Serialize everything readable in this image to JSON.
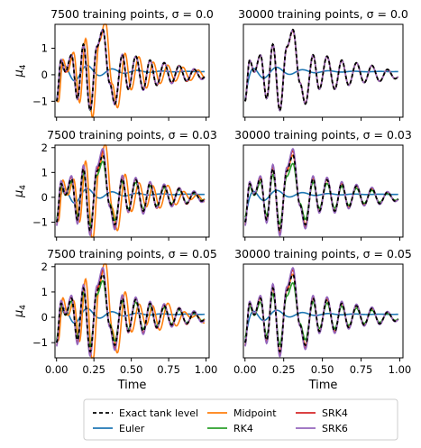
{
  "colors": {
    "Exact tank level": "#000000",
    "Euler": "#1f77b4",
    "Midpoint": "#ff7f0e",
    "RK4": "#2ca02c",
    "SRK4": "#d62728",
    "SRK6": "#9467bd"
  },
  "legend": {
    "columns": [
      [
        "Exact tank level",
        "Euler"
      ],
      [
        "Midpoint",
        "RK4"
      ],
      [
        "SRK4",
        "SRK6"
      ]
    ],
    "position": "bottom"
  },
  "chart_data": [
    {
      "type": "line",
      "title": "7500 training points, σ = 0.0",
      "ylabel": "μ4",
      "xlabel": "",
      "ylim": [
        -1.6,
        1.9
      ],
      "yticks": [
        -1,
        0,
        1
      ],
      "xticks": [],
      "grid": false,
      "series": [
        {
          "name": "Exact tank level",
          "style": "dashed"
        },
        {
          "name": "Euler"
        },
        {
          "name": "Midpoint"
        },
        {
          "name": "RK4"
        },
        {
          "name": "SRK4"
        },
        {
          "name": "SRK6"
        }
      ],
      "x": [
        0,
        1
      ]
    },
    {
      "type": "line",
      "title": "30000 training points, σ = 0.0",
      "ylabel": "",
      "xlabel": "",
      "ylim": [
        -1.6,
        1.9
      ],
      "yticks": [],
      "xticks": [],
      "grid": false,
      "series": [
        {
          "name": "Exact tank level",
          "style": "dashed"
        },
        {
          "name": "Euler"
        },
        {
          "name": "Midpoint"
        },
        {
          "name": "RK4"
        },
        {
          "name": "SRK4"
        },
        {
          "name": "SRK6"
        }
      ],
      "x": [
        0,
        1
      ]
    },
    {
      "type": "line",
      "title": "7500 training points, σ = 0.03",
      "ylabel": "μ4",
      "xlabel": "",
      "ylim": [
        -1.6,
        2.1
      ],
      "yticks": [
        -1,
        0,
        1,
        2
      ],
      "xticks": [],
      "grid": false,
      "series": [
        {
          "name": "Exact tank level",
          "style": "dashed"
        },
        {
          "name": "Euler"
        },
        {
          "name": "Midpoint"
        },
        {
          "name": "RK4"
        },
        {
          "name": "SRK4"
        },
        {
          "name": "SRK6"
        }
      ],
      "x": [
        0,
        1
      ]
    },
    {
      "type": "line",
      "title": "30000 training points, σ = 0.03",
      "ylabel": "",
      "xlabel": "",
      "ylim": [
        -1.6,
        2.1
      ],
      "yticks": [],
      "xticks": [],
      "grid": false,
      "series": [
        {
          "name": "Exact tank level",
          "style": "dashed"
        },
        {
          "name": "Euler"
        },
        {
          "name": "Midpoint"
        },
        {
          "name": "RK4"
        },
        {
          "name": "SRK4"
        },
        {
          "name": "SRK6"
        }
      ],
      "x": [
        0,
        1
      ]
    },
    {
      "type": "line",
      "title": "7500 training points, σ = 0.05",
      "ylabel": "μ4",
      "xlabel": "Time",
      "ylim": [
        -1.6,
        2.1
      ],
      "yticks": [
        -1,
        0,
        1,
        2
      ],
      "xticks": [
        "0.00",
        "0.25",
        "0.50",
        "0.75",
        "1.00"
      ],
      "grid": false,
      "series": [
        {
          "name": "Exact tank level",
          "style": "dashed"
        },
        {
          "name": "Euler"
        },
        {
          "name": "Midpoint"
        },
        {
          "name": "RK4"
        },
        {
          "name": "SRK4"
        },
        {
          "name": "SRK6"
        }
      ],
      "x": [
        0,
        1
      ]
    },
    {
      "type": "line",
      "title": "30000 training points, σ = 0.05",
      "ylabel": "",
      "xlabel": "Time",
      "ylim": [
        -1.6,
        2.1
      ],
      "yticks": [],
      "xticks": [
        "0.00",
        "0.25",
        "0.50",
        "0.75",
        "1.00"
      ],
      "grid": false,
      "series": [
        {
          "name": "Exact tank level",
          "style": "dashed"
        },
        {
          "name": "Euler"
        },
        {
          "name": "Midpoint"
        },
        {
          "name": "RK4"
        },
        {
          "name": "SRK4"
        },
        {
          "name": "SRK6"
        }
      ],
      "x": [
        0,
        1
      ]
    }
  ]
}
